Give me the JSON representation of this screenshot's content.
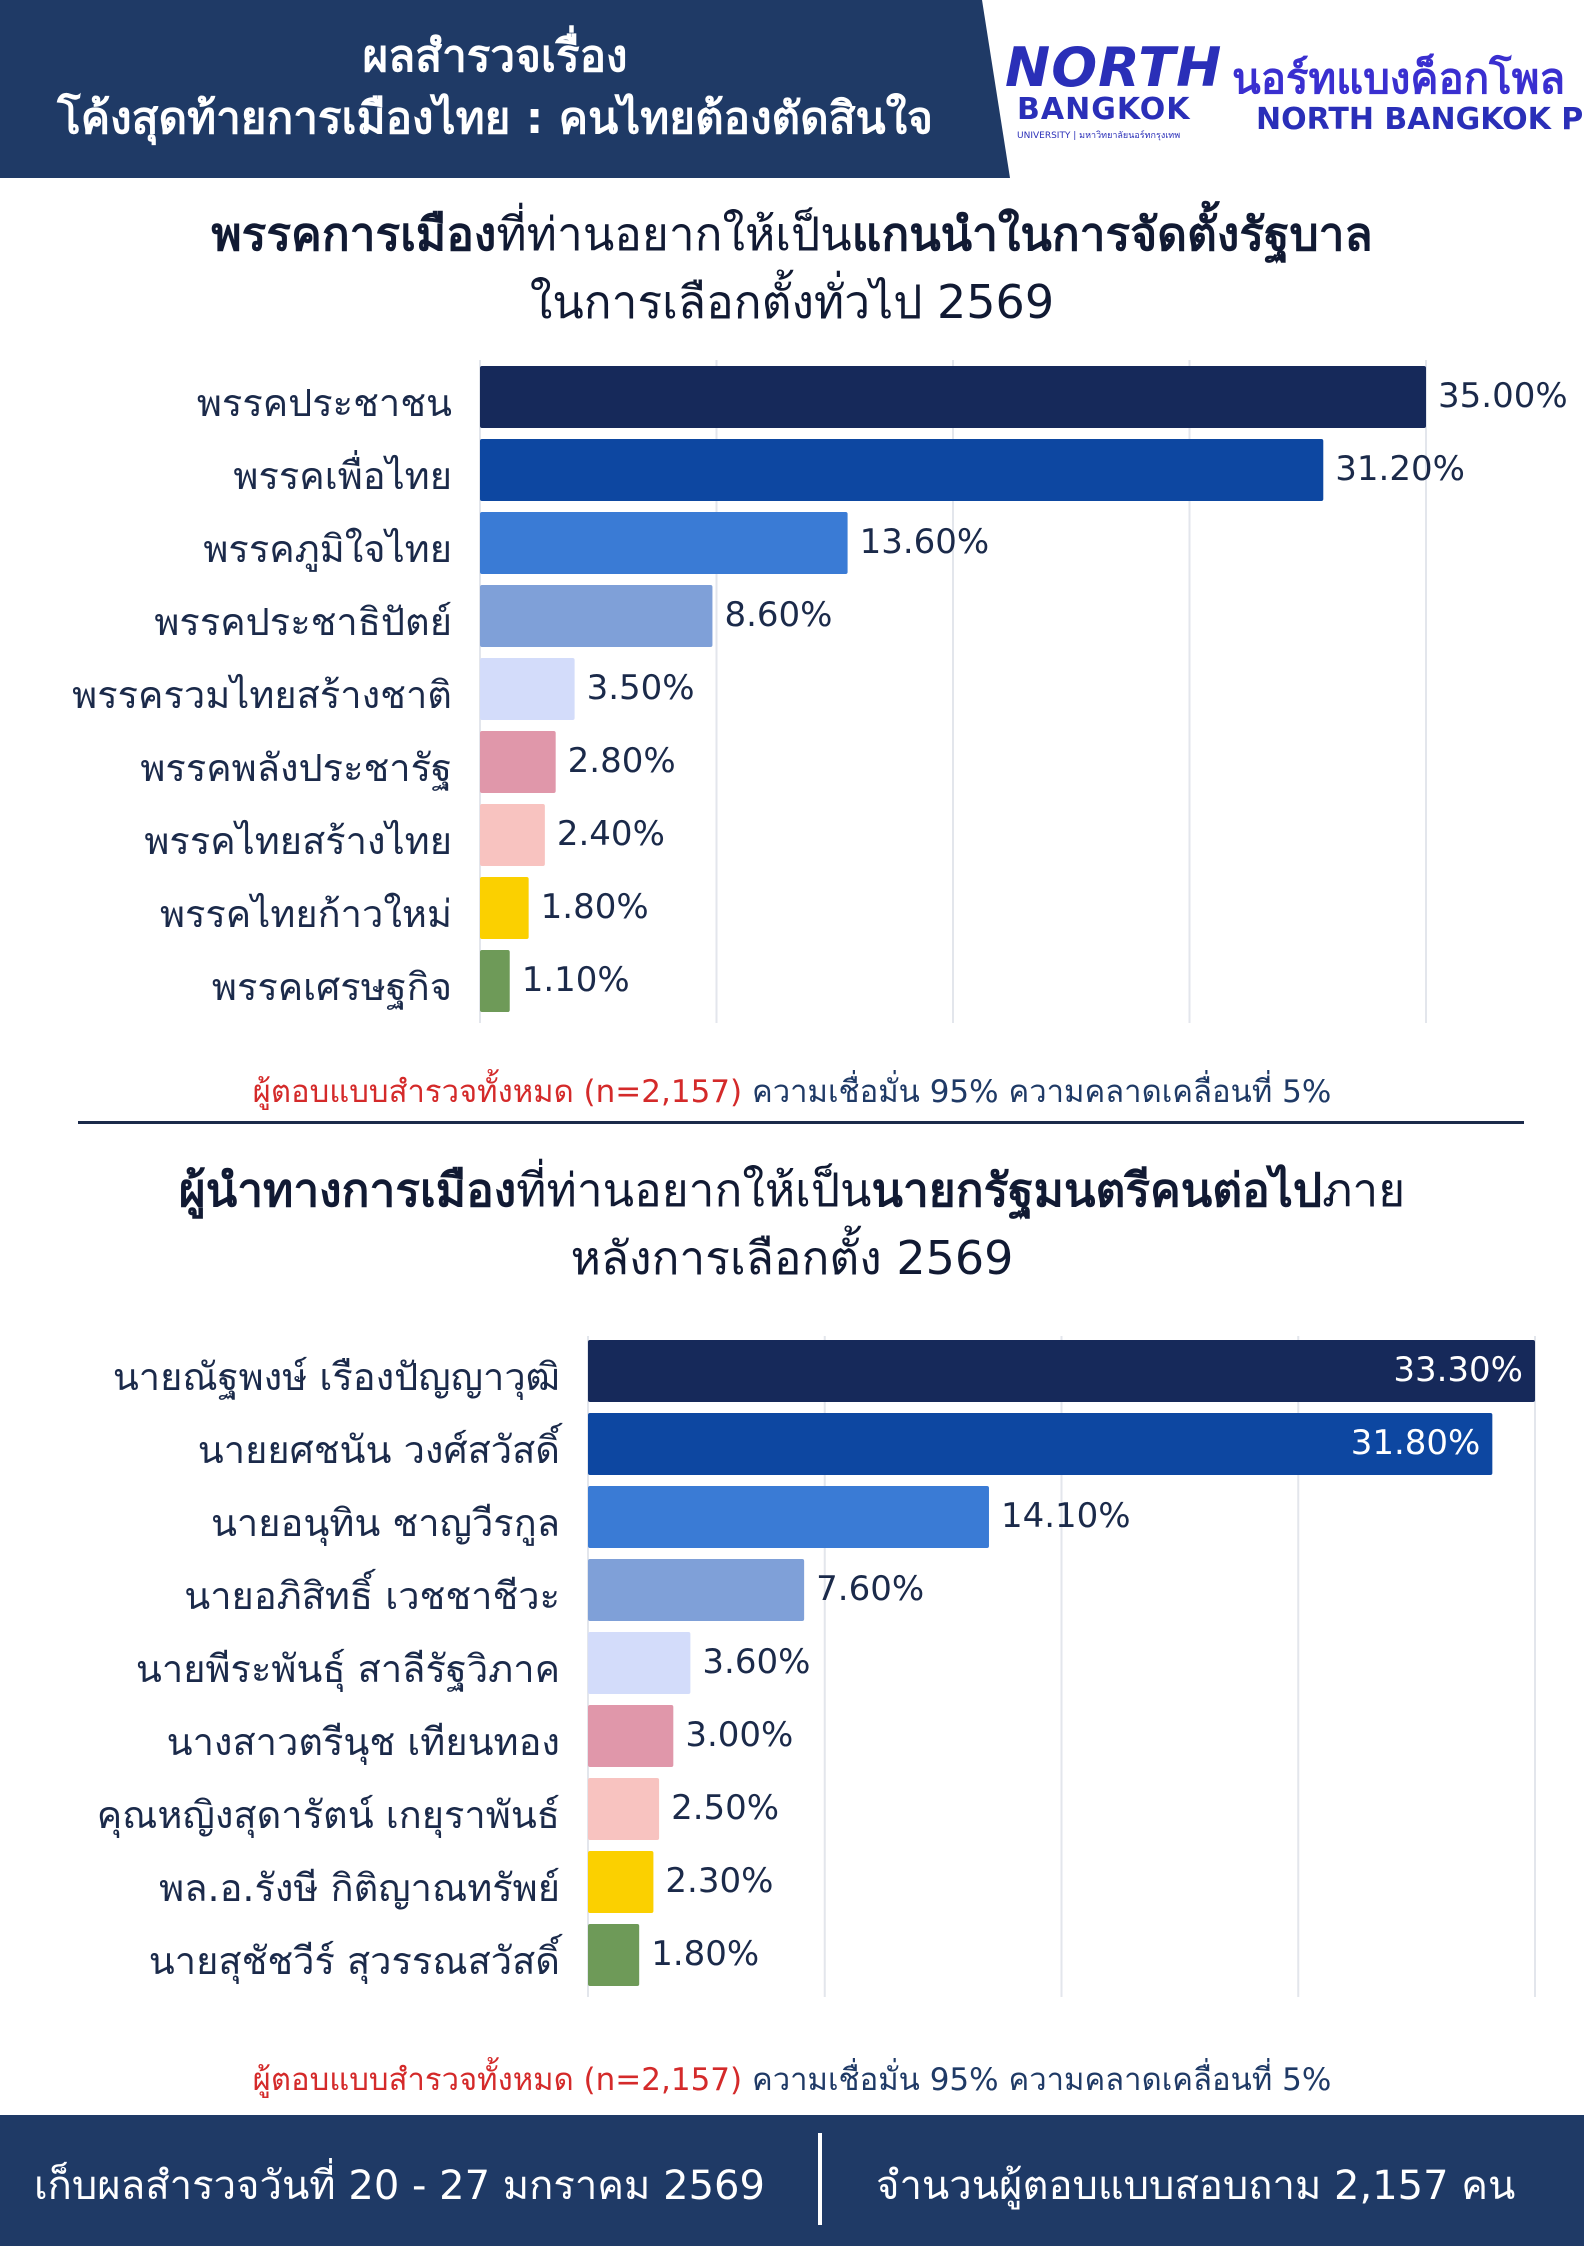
{
  "header": {
    "title_line1": "ผลสำรวจเรื่อง",
    "title_line2": "โค้งสุดท้ายการเมืองไทย : คนไทยต้องตัดสินใจ",
    "logo_north": "NORTH",
    "logo_bangkok": "BANGKOK",
    "logo_sub": "UNIVERSITY | มหาวิทยาลัยนอร์ทกรุงเทพ",
    "poll_thai": "นอร์ทแบงค็อกโพล",
    "poll_en": "NORTH BANGKOK Poll"
  },
  "section1": {
    "title_bold1": "พรรคการเมือง",
    "title_normal1": "ที่ท่านอยากให้เป็น",
    "title_bold2": "แกนนำในการจัดตั้งรัฐบาล",
    "title_line2": "ในการเลือกตั้งทั่วไป 2569",
    "note_red": "ผู้ตอบแบบสำรวจทั้งหมด (n=2,157)",
    "note_blue": " ความเชื่อมั่น 95% ความคลาดเคลื่อนที่ 5%"
  },
  "section2": {
    "title_bold1": "ผู้นำทางการเมือง",
    "title_normal1": "ที่ท่านอยากให้เป็น",
    "title_bold2": "นายกรัฐมนตรีคนต่อไป",
    "title_normal2": "ภาย",
    "title_line2": "หลังการเลือกตั้ง 2569",
    "note_red": "ผู้ตอบแบบสำรวจทั้งหมด (n=2,157)",
    "note_blue": " ความเชื่อมั่น 95% ความคลาดเคลื่อนที่ 5%"
  },
  "footer": {
    "left": "เก็บผลสำรวจวันที่ 20 - 27 มกราคม 2569",
    "right": "จำนวนผู้ตอบแบบสอบถาม 2,157 คน"
  },
  "colors": {
    "header_bg": "#1f3a66",
    "bar1": "#16295a",
    "bar2": "#0d47a1",
    "bar3": "#3a7bd5",
    "bar4": "#7fa0d8",
    "bar5": "#d3dcfa",
    "bar6": "#e097aa",
    "bar7": "#f8c3c0",
    "bar8": "#fbd000",
    "bar9": "#6e9a58",
    "note_red": "#d42a2a"
  },
  "chart_data": [
    {
      "type": "bar",
      "orientation": "horizontal",
      "categories": [
        "พรรคประชาชน",
        "พรรคเพื่อไทย",
        "พรรคภูมิใจไทย",
        "พรรคประชาธิปัตย์",
        "พรรครวมไทยสร้างชาติ",
        "พรรคพลังประชารัฐ",
        "พรรคไทยสร้างไทย",
        "พรรคไทยก้าวใหม่",
        "พรรคเศรษฐกิจ"
      ],
      "values": [
        35.0,
        31.2,
        13.6,
        8.6,
        3.5,
        2.8,
        2.4,
        1.8,
        1.1
      ],
      "value_labels": [
        "35.00%",
        "31.20%",
        "13.60%",
        "8.60%",
        "3.50%",
        "2.80%",
        "2.40%",
        "1.80%",
        "1.10%"
      ],
      "xlim": [
        0,
        35
      ],
      "grid": true,
      "legend": "none"
    },
    {
      "type": "bar",
      "orientation": "horizontal",
      "categories": [
        "นายณัฐพงษ์ เรืองปัญญาวุฒิ",
        "นายยศชนัน วงศ์สวัสดิ์",
        "นายอนุทิน ชาญวีรกูล",
        "นายอภิสิทธิ์ เวชชาชีวะ",
        "นายพีระพันธุ์ สาลีรัฐวิภาค",
        "นางสาวตรีนุช เทียนทอง",
        "คุณหญิงสุดารัตน์ เกยุราพันธ์",
        "พล.อ.รังษี กิติญาณทรัพย์",
        "นายสุชัชวีร์ สุวรรณสวัสดิ์"
      ],
      "values": [
        33.3,
        31.8,
        14.1,
        7.6,
        3.6,
        3.0,
        2.5,
        2.3,
        1.8
      ],
      "value_labels": [
        "33.30%",
        "31.80%",
        "14.10%",
        "7.60%",
        "3.60%",
        "3.00%",
        "2.50%",
        "2.30%",
        "1.80%"
      ],
      "xlim": [
        0,
        33.3
      ],
      "grid": true,
      "legend": "none"
    }
  ]
}
